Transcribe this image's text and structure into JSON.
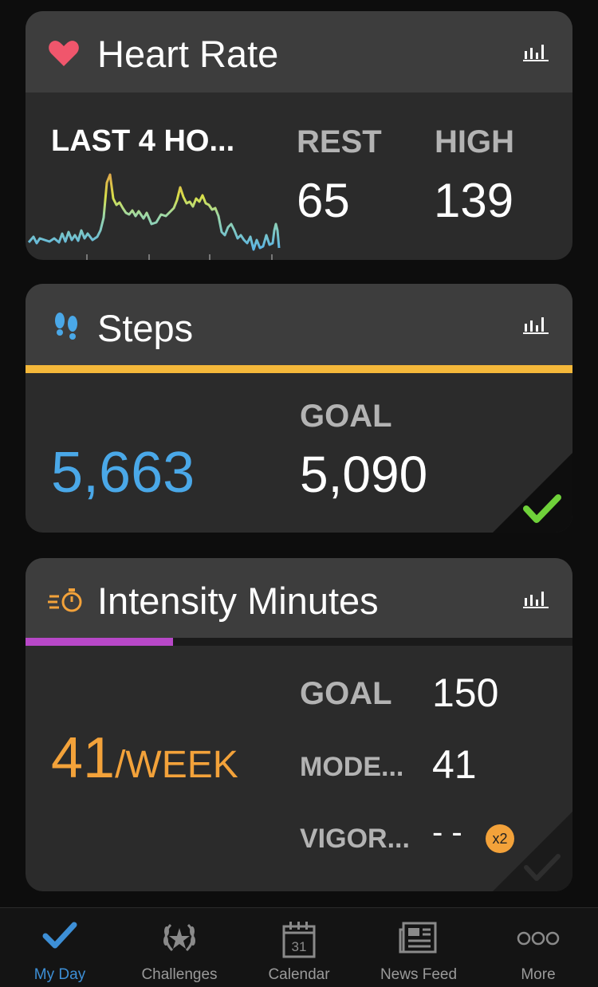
{
  "heart_rate": {
    "title": "Heart Rate",
    "period_label": "LAST 4 HO...",
    "rest_label": "REST",
    "rest_value": "65",
    "high_label": "HIGH",
    "high_value": "139",
    "icons": [
      "heart-icon",
      "stats-icon"
    ],
    "colors": {
      "heart": "#f0566c",
      "low": "#5ab4e6",
      "mid": "#d8e04a",
      "high": "#e0a94a"
    }
  },
  "steps": {
    "title": "Steps",
    "value": "5,663",
    "goal_label": "GOAL",
    "goal_value": "5,090",
    "progress": 1.0,
    "goal_met": true,
    "icons": [
      "footprints-icon",
      "stats-icon",
      "check-icon"
    ],
    "colors": {
      "value": "#4aa8e8",
      "bar": "#f5b83a",
      "check": "#6fd13a"
    }
  },
  "intensity": {
    "title": "Intensity Minutes",
    "value": "41",
    "unit": "/WEEK",
    "goal_label": "GOAL",
    "goal_value": "150",
    "moderate_label": "MODE...",
    "moderate_value": "41",
    "vigorous_label": "VIGOR...",
    "vigorous_value": "- -",
    "multiplier": "x2",
    "progress": 0.27,
    "icons": [
      "stopwatch-icon",
      "stats-icon",
      "check-icon"
    ],
    "colors": {
      "value": "#f3a23a",
      "bar": "#b848c8",
      "badge": "#f3a23a"
    }
  },
  "tab_bar": {
    "active": "My Day",
    "items": [
      {
        "label": "My Day",
        "icon": "check-icon"
      },
      {
        "label": "Challenges",
        "icon": "laurel-icon"
      },
      {
        "label": "Calendar",
        "icon": "calendar-icon",
        "badge": "31"
      },
      {
        "label": "News Feed",
        "icon": "newspaper-icon"
      },
      {
        "label": "More",
        "icon": "more-icon"
      }
    ],
    "colors": {
      "active": "#3d8fd6",
      "inactive": "#9a9a9a"
    }
  }
}
